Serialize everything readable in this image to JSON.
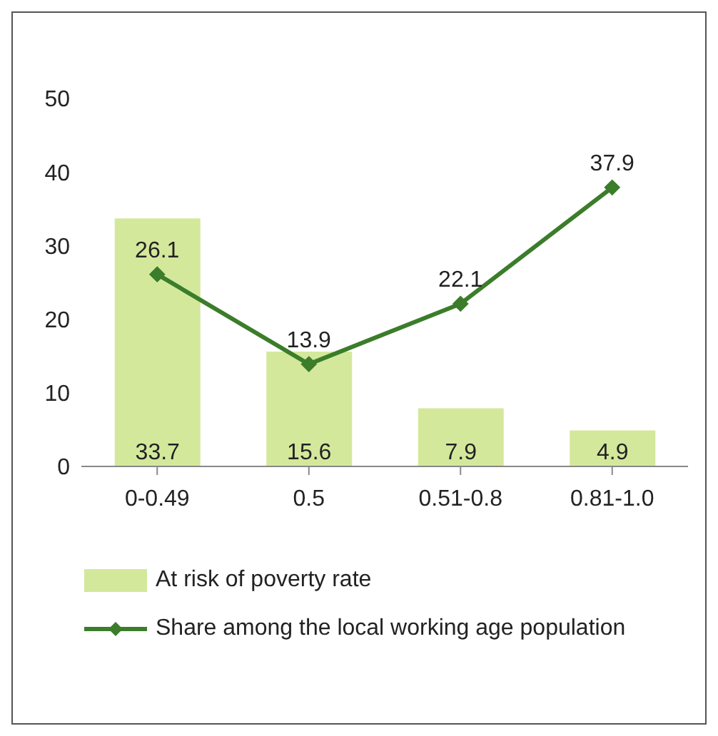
{
  "chart_data": {
    "type": "bar",
    "categories": [
      "0-0.49",
      "0.5",
      "0.51-0.8",
      "0.81-1.0"
    ],
    "series": [
      {
        "name": "At risk of poverty rate",
        "color": "#d4e89c",
        "values": [
          33.7,
          15.6,
          7.9,
          4.9
        ]
      },
      {
        "name": "Share among the local working age population",
        "type": "line",
        "color": "#3b7d2a",
        "values": [
          26.1,
          13.9,
          22.1,
          37.9
        ]
      }
    ],
    "ylim": [
      0,
      50
    ],
    "yticks": [
      0,
      10,
      20,
      30,
      40,
      50
    ],
    "data_labels": true,
    "legend": "bottom",
    "marker": "diamond",
    "grid": false
  }
}
